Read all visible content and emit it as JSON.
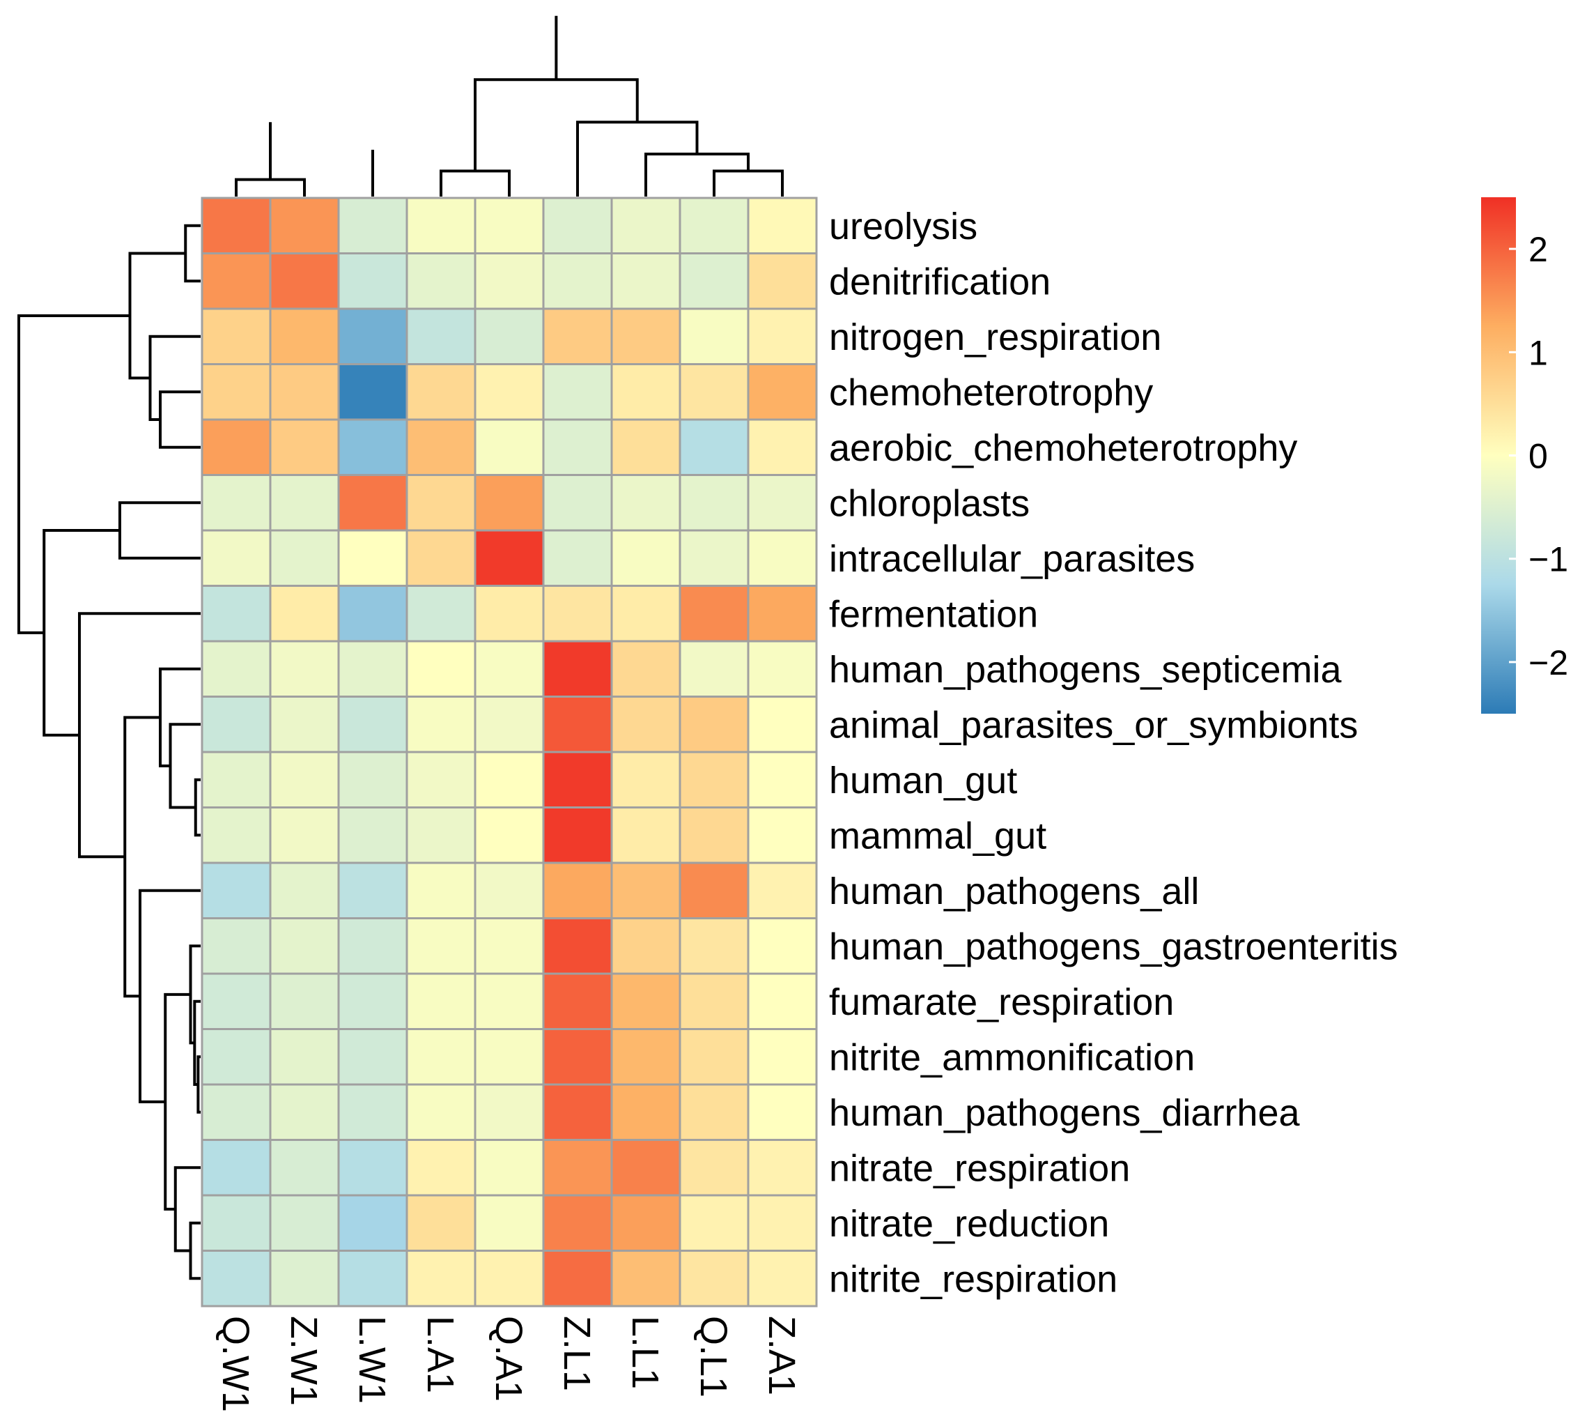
{
  "chart_data": {
    "type": "heatmap",
    "title": "",
    "columns": [
      "Q.W1",
      "Z.W1",
      "L.W1",
      "L.A1",
      "Q.A1",
      "Z.L1",
      "L.L1",
      "Q.L1",
      "Z.A1"
    ],
    "rows": [
      "ureolysis",
      "denitrification",
      "nitrogen_respiration",
      "chemoheterotrophy",
      "aerobic_chemoheterotrophy",
      "chloroplasts",
      "intracellular_parasites",
      "fermentation",
      "human_pathogens_septicemia",
      "animal_parasites_or_symbionts",
      "human_gut",
      "mammal_gut",
      "human_pathogens_all",
      "human_pathogens_gastroenteritis",
      "fumarate_respiration",
      "nitrite_ammonification",
      "human_pathogens_diarrhea",
      "nitrate_respiration",
      "nitrate_reduction",
      "nitrite_respiration"
    ],
    "values": [
      [
        1.8,
        1.5,
        -0.6,
        -0.1,
        -0.1,
        -0.5,
        -0.3,
        -0.4,
        0.1
      ],
      [
        1.5,
        1.8,
        -0.8,
        -0.4,
        -0.2,
        -0.4,
        -0.3,
        -0.5,
        0.5
      ],
      [
        0.7,
        1.1,
        -1.8,
        -0.9,
        -0.6,
        0.8,
        0.8,
        -0.1,
        0.2
      ],
      [
        0.7,
        0.8,
        -2.4,
        0.6,
        0.2,
        -0.5,
        0.3,
        0.4,
        1.2
      ],
      [
        1.4,
        0.8,
        -1.6,
        1.0,
        -0.1,
        -0.5,
        0.5,
        -1.1,
        0.2
      ],
      [
        -0.4,
        -0.4,
        1.8,
        0.6,
        1.4,
        -0.5,
        -0.3,
        -0.4,
        -0.3
      ],
      [
        -0.2,
        -0.4,
        0.0,
        0.6,
        2.4,
        -0.5,
        -0.1,
        -0.3,
        -0.1
      ],
      [
        -0.9,
        0.3,
        -1.5,
        -0.7,
        0.3,
        0.4,
        0.3,
        1.6,
        1.3
      ],
      [
        -0.4,
        -0.2,
        -0.4,
        0.0,
        -0.1,
        2.4,
        0.6,
        -0.2,
        -0.1
      ],
      [
        -0.8,
        -0.3,
        -0.8,
        -0.1,
        -0.2,
        2.1,
        0.6,
        0.8,
        0.0
      ],
      [
        -0.4,
        -0.2,
        -0.5,
        -0.2,
        0.0,
        2.4,
        0.3,
        0.6,
        0.0
      ],
      [
        -0.4,
        -0.2,
        -0.5,
        -0.3,
        0.0,
        2.4,
        0.3,
        0.6,
        0.0
      ],
      [
        -1.1,
        -0.4,
        -1.0,
        -0.1,
        -0.2,
        1.3,
        1.0,
        1.6,
        0.2
      ],
      [
        -0.6,
        -0.4,
        -0.7,
        -0.1,
        -0.1,
        2.2,
        0.7,
        0.4,
        0.0
      ],
      [
        -0.7,
        -0.5,
        -0.7,
        -0.1,
        -0.1,
        2.0,
        1.1,
        0.5,
        0.0
      ],
      [
        -0.7,
        -0.4,
        -0.7,
        -0.1,
        -0.1,
        2.0,
        1.1,
        0.5,
        0.0
      ],
      [
        -0.6,
        -0.4,
        -0.7,
        -0.1,
        -0.2,
        2.0,
        1.2,
        0.5,
        0.0
      ],
      [
        -1.1,
        -0.6,
        -1.1,
        0.2,
        -0.1,
        1.5,
        1.7,
        0.4,
        0.2
      ],
      [
        -0.8,
        -0.6,
        -1.3,
        0.5,
        -0.1,
        1.7,
        1.4,
        0.2,
        0.2
      ],
      [
        -1.0,
        -0.5,
        -1.1,
        0.2,
        0.2,
        1.9,
        1.0,
        0.4,
        0.2
      ]
    ],
    "color_scale": {
      "range": [
        -2.5,
        2.5
      ],
      "ticks": [
        2,
        1,
        0,
        -1,
        -2
      ],
      "tick_labels": [
        "2",
        "1",
        "0",
        "−1",
        "−2"
      ],
      "colors": [
        "#2c7bb6",
        "#abd9e9",
        "#ffffbf",
        "#fdae61",
        "#f03025"
      ]
    },
    "column_dendrogram": [
      [
        0,
        1,
        0.08
      ],
      [
        3,
        4,
        0.12
      ],
      [
        2,
        11,
        0.22
      ],
      [
        9,
        12,
        0.35
      ],
      [
        7,
        8,
        0.12
      ],
      [
        6,
        13,
        0.2
      ],
      [
        5,
        14,
        0.35
      ],
      [
        10,
        15,
        0.55
      ],
      [
        16,
        17,
        0.85
      ]
    ],
    "row_dendrogram": [
      [
        0,
        1,
        0.03
      ],
      [
        3,
        4,
        0.08
      ],
      [
        2,
        21,
        0.1
      ],
      [
        20,
        22,
        0.14
      ],
      [
        5,
        6,
        0.16
      ],
      [
        10,
        11,
        0.01
      ],
      [
        15,
        16,
        0.005
      ],
      [
        14,
        26,
        0.012
      ],
      [
        13,
        27,
        0.02
      ],
      [
        18,
        19,
        0.02
      ],
      [
        17,
        29,
        0.05
      ],
      [
        28,
        30,
        0.07
      ],
      [
        9,
        25,
        0.06
      ],
      [
        8,
        32,
        0.08
      ],
      [
        12,
        31,
        0.12
      ],
      [
        33,
        34,
        0.15
      ],
      [
        7,
        35,
        0.24
      ],
      [
        24,
        36,
        0.31
      ],
      [
        23,
        37,
        0.36
      ]
    ]
  }
}
